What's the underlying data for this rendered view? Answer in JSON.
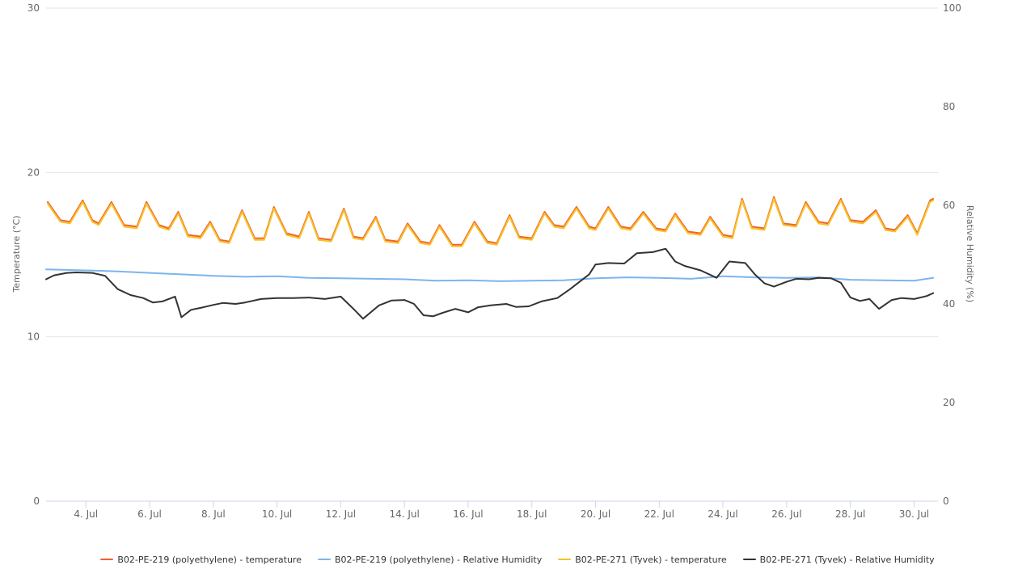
{
  "chart_data": {
    "type": "line",
    "y_axis_left": {
      "title": "Temperature (°C)",
      "range": [
        0,
        30
      ],
      "ticks": [
        "0",
        "10",
        "20",
        "30"
      ]
    },
    "y_axis_right": {
      "title": "Relative Humidity (%)",
      "range": [
        0,
        100
      ],
      "ticks": [
        "0",
        "20",
        "40",
        "60",
        "80",
        "100"
      ]
    },
    "x_axis": {
      "unit": "day of July",
      "range": [
        2.75,
        30.75
      ],
      "ticks": [
        {
          "day": 4,
          "label": "4. Jul"
        },
        {
          "day": 6,
          "label": "6. Jul"
        },
        {
          "day": 8,
          "label": "8. Jul"
        },
        {
          "day": 10,
          "label": "10. Jul"
        },
        {
          "day": 12,
          "label": "12. Jul"
        },
        {
          "day": 14,
          "label": "14. Jul"
        },
        {
          "day": 16,
          "label": "16. Jul"
        },
        {
          "day": 18,
          "label": "18. Jul"
        },
        {
          "day": 20,
          "label": "20. Jul"
        },
        {
          "day": 22,
          "label": "22. Jul"
        },
        {
          "day": 24,
          "label": "24. Jul"
        },
        {
          "day": 26,
          "label": "26. Jul"
        },
        {
          "day": 28,
          "label": "28. Jul"
        },
        {
          "day": 30,
          "label": "30. Jul"
        }
      ]
    },
    "grid": true,
    "legend_position": "bottom",
    "series": [
      {
        "name": "B02-PE-219 (polyethylene) - temperature",
        "axis": "left",
        "color": "#f4602f",
        "x": [
          2.8,
          3.2,
          3.5,
          3.9,
          4.2,
          4.4,
          4.8,
          5.2,
          5.6,
          5.9,
          6.3,
          6.6,
          6.9,
          7.2,
          7.6,
          7.9,
          8.2,
          8.5,
          8.9,
          9.3,
          9.6,
          9.9,
          10.3,
          10.7,
          11.0,
          11.3,
          11.7,
          12.1,
          12.4,
          12.7,
          13.1,
          13.4,
          13.8,
          14.1,
          14.5,
          14.8,
          15.1,
          15.5,
          15.8,
          16.2,
          16.6,
          16.9,
          17.3,
          17.6,
          18.0,
          18.4,
          18.7,
          19.0,
          19.4,
          19.8,
          20.0,
          20.4,
          20.8,
          21.1,
          21.5,
          21.9,
          22.2,
          22.5,
          22.9,
          23.3,
          23.6,
          24.0,
          24.3,
          24.6,
          24.9,
          25.3,
          25.6,
          25.9,
          26.3,
          26.6,
          27.0,
          27.3,
          27.7,
          28.0,
          28.4,
          28.8,
          29.1,
          29.4,
          29.8,
          30.1,
          30.5,
          30.6
        ],
        "y": [
          18.2,
          17.1,
          17.0,
          18.3,
          17.1,
          16.9,
          18.2,
          16.8,
          16.7,
          18.2,
          16.8,
          16.6,
          17.6,
          16.2,
          16.1,
          17.0,
          15.9,
          15.8,
          17.7,
          16.0,
          16.0,
          17.9,
          16.3,
          16.1,
          17.6,
          16.0,
          15.9,
          17.8,
          16.1,
          16.0,
          17.3,
          15.9,
          15.8,
          16.9,
          15.8,
          15.7,
          16.8,
          15.6,
          15.6,
          17.0,
          15.8,
          15.7,
          17.4,
          16.1,
          16.0,
          17.6,
          16.8,
          16.7,
          17.9,
          16.7,
          16.6,
          17.9,
          16.7,
          16.6,
          17.6,
          16.6,
          16.5,
          17.5,
          16.4,
          16.3,
          17.3,
          16.2,
          16.1,
          18.4,
          16.7,
          16.6,
          18.5,
          16.9,
          16.8,
          18.2,
          17.0,
          16.9,
          18.4,
          17.1,
          17.0,
          17.7,
          16.6,
          16.5,
          17.4,
          16.3,
          18.3,
          18.4
        ]
      },
      {
        "name": "B02-PE-219 (polyethylene) - Relative Humidity",
        "axis": "right",
        "color": "#7cb5ec",
        "x": [
          2.75,
          4.0,
          5.0,
          6.0,
          7.0,
          8.0,
          9.0,
          10.0,
          11.0,
          12.0,
          13.0,
          14.0,
          15.0,
          16.0,
          17.0,
          18.0,
          19.0,
          20.0,
          21.0,
          22.0,
          23.0,
          24.0,
          25.0,
          26.0,
          27.0,
          28.0,
          29.0,
          30.0,
          30.6
        ],
        "y": [
          47.0,
          46.8,
          46.6,
          46.3,
          46.0,
          45.7,
          45.5,
          45.6,
          45.3,
          45.2,
          45.1,
          45.0,
          44.7,
          44.8,
          44.6,
          44.7,
          44.8,
          45.2,
          45.4,
          45.3,
          45.1,
          45.6,
          45.4,
          45.3,
          45.4,
          44.9,
          44.8,
          44.7,
          45.3
        ]
      },
      {
        "name": "B02-PE-271 (Tyvek) - temperature",
        "axis": "left",
        "color": "#f7c325",
        "x": [
          2.8,
          3.2,
          3.5,
          3.9,
          4.2,
          4.4,
          4.8,
          5.2,
          5.6,
          5.9,
          6.3,
          6.6,
          6.9,
          7.2,
          7.6,
          7.9,
          8.2,
          8.5,
          8.9,
          9.3,
          9.6,
          9.9,
          10.3,
          10.7,
          11.0,
          11.3,
          11.7,
          12.1,
          12.4,
          12.7,
          13.1,
          13.4,
          13.8,
          14.1,
          14.5,
          14.8,
          15.1,
          15.5,
          15.8,
          16.2,
          16.6,
          16.9,
          17.3,
          17.6,
          18.0,
          18.4,
          18.7,
          19.0,
          19.4,
          19.8,
          20.0,
          20.4,
          20.8,
          21.1,
          21.5,
          21.9,
          22.2,
          22.5,
          22.9,
          23.3,
          23.6,
          24.0,
          24.3,
          24.6,
          24.9,
          25.3,
          25.6,
          25.9,
          26.3,
          26.6,
          27.0,
          27.3,
          27.7,
          28.0,
          28.4,
          28.8,
          29.1,
          29.4,
          29.8,
          30.1,
          30.5,
          30.6
        ],
        "y": [
          18.1,
          17.0,
          16.9,
          18.2,
          17.0,
          16.8,
          18.1,
          16.7,
          16.6,
          18.1,
          16.7,
          16.5,
          17.5,
          16.1,
          16.0,
          16.9,
          15.8,
          15.7,
          17.6,
          15.9,
          15.9,
          17.8,
          16.2,
          16.0,
          17.5,
          15.9,
          15.8,
          17.7,
          16.0,
          15.9,
          17.2,
          15.8,
          15.7,
          16.8,
          15.7,
          15.6,
          16.7,
          15.5,
          15.5,
          16.9,
          15.7,
          15.6,
          17.3,
          16.0,
          15.9,
          17.5,
          16.7,
          16.6,
          17.8,
          16.6,
          16.5,
          17.8,
          16.6,
          16.5,
          17.5,
          16.5,
          16.4,
          17.4,
          16.3,
          16.2,
          17.2,
          16.1,
          16.0,
          18.3,
          16.6,
          16.5,
          18.4,
          16.8,
          16.7,
          18.1,
          16.9,
          16.8,
          18.3,
          17.0,
          16.9,
          17.6,
          16.5,
          16.4,
          17.3,
          16.2,
          18.2,
          18.3
        ]
      },
      {
        "name": "B02-PE-271 (Tyvek) - Relative Humidity",
        "axis": "right",
        "color": "#333333",
        "x": [
          2.75,
          3.0,
          3.4,
          3.7,
          4.2,
          4.6,
          5.0,
          5.4,
          5.8,
          6.1,
          6.4,
          6.8,
          7.0,
          7.3,
          7.6,
          8.0,
          8.3,
          8.7,
          9.0,
          9.5,
          10.0,
          10.5,
          11.0,
          11.5,
          12.0,
          12.4,
          12.7,
          13.2,
          13.6,
          14.0,
          14.3,
          14.6,
          14.9,
          15.2,
          15.6,
          16.0,
          16.3,
          16.7,
          17.2,
          17.5,
          17.9,
          18.3,
          18.8,
          19.2,
          19.5,
          19.8,
          20.0,
          20.4,
          20.9,
          21.3,
          21.8,
          22.2,
          22.5,
          22.8,
          23.3,
          23.8,
          24.2,
          24.7,
          25.0,
          25.3,
          25.6,
          26.0,
          26.3,
          26.7,
          27.0,
          27.4,
          27.7,
          28.0,
          28.3,
          28.6,
          28.9,
          29.3,
          29.6,
          30.0,
          30.4,
          30.6
        ],
        "y": [
          45.0,
          45.8,
          46.3,
          46.4,
          46.3,
          45.7,
          43.0,
          41.8,
          41.2,
          40.3,
          40.5,
          41.5,
          37.3,
          38.8,
          39.2,
          39.8,
          40.2,
          40.0,
          40.3,
          41.0,
          41.2,
          41.2,
          41.3,
          41.0,
          41.5,
          39.0,
          37.0,
          39.7,
          40.7,
          40.8,
          40.0,
          37.7,
          37.5,
          38.2,
          39.0,
          38.3,
          39.3,
          39.7,
          40.0,
          39.4,
          39.5,
          40.5,
          41.2,
          43.0,
          44.5,
          46.0,
          48.0,
          48.3,
          48.2,
          50.3,
          50.5,
          51.2,
          48.6,
          47.7,
          46.8,
          45.3,
          48.6,
          48.3,
          46.0,
          44.2,
          43.5,
          44.5,
          45.1,
          45.0,
          45.3,
          45.2,
          44.3,
          41.3,
          40.6,
          41.0,
          39.0,
          40.8,
          41.2,
          41.0,
          41.6,
          42.2
        ]
      }
    ]
  }
}
